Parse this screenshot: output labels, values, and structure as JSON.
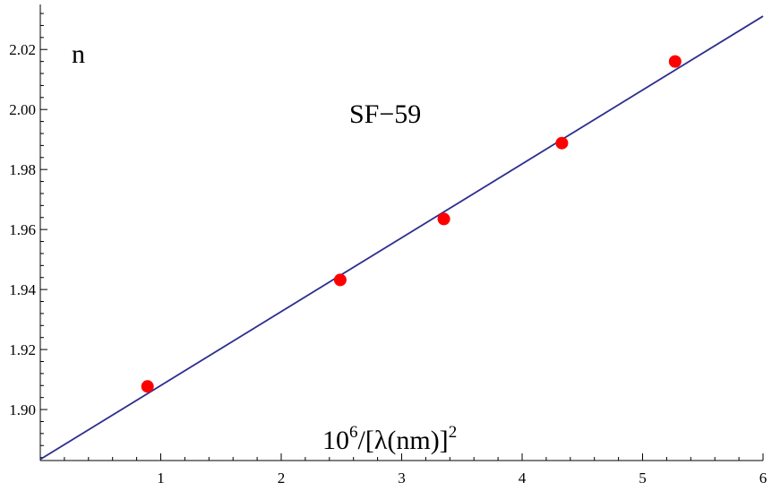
{
  "chart_data": {
    "type": "scatter",
    "title": "",
    "annotations": {
      "y_label": "n",
      "series_label": "SF−59",
      "x_label_base": "10",
      "x_label_exp": "6",
      "x_label_mid": "/[λ(nm)]",
      "x_label_exp2": "2"
    },
    "xlim": [
      0,
      6
    ],
    "ylim": [
      1.883,
      2.035
    ],
    "x_ticks": [
      1,
      2,
      3,
      4,
      5,
      6
    ],
    "y_ticks": [
      1.9,
      1.92,
      1.94,
      1.96,
      1.98,
      2.0,
      2.02
    ],
    "x_tick_labels": [
      "1",
      "2",
      "3",
      "4",
      "5",
      "6"
    ],
    "y_tick_labels": [
      "1.90",
      "1.92",
      "1.94",
      "1.96",
      "1.98",
      "2.00",
      "2.02"
    ],
    "points": {
      "x": [
        0.89,
        2.49,
        3.35,
        4.33,
        5.27
      ],
      "y": [
        1.9077,
        1.9432,
        1.9635,
        1.9888,
        2.016
      ]
    },
    "fit_line": {
      "x": [
        0,
        6
      ],
      "y": [
        1.8834,
        2.0311
      ]
    },
    "grid": false,
    "colors": {
      "points": "#ff0000",
      "line": "#2e2e8f",
      "axes": "#000000"
    }
  }
}
